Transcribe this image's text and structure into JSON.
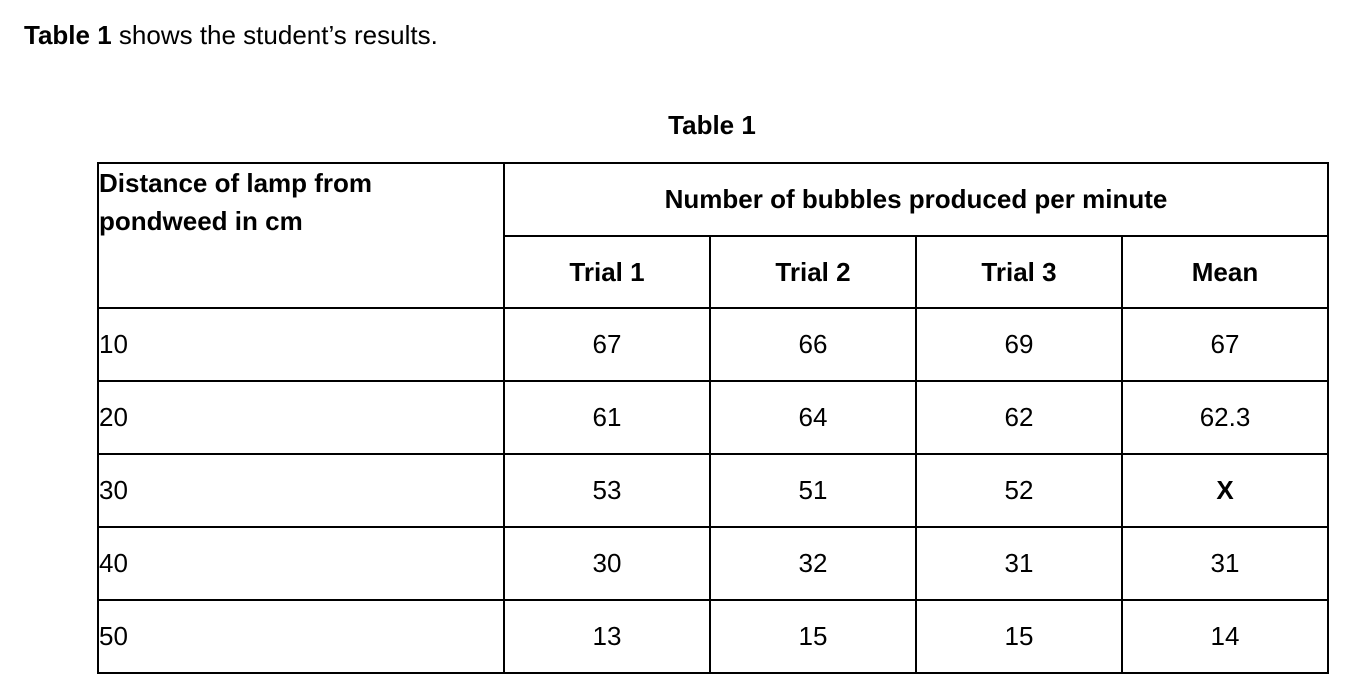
{
  "intro": {
    "bold": "Table 1",
    "rest": " shows the student’s results."
  },
  "table": {
    "caption": "Table 1",
    "distance_header": "Distance of lamp from pondweed in cm",
    "group_header": "Number of bubbles produced per minute",
    "sub_headers": [
      "Trial 1",
      "Trial 2",
      "Trial 3",
      "Mean"
    ],
    "rows": [
      {
        "distance": "10",
        "trial1": "67",
        "trial2": "66",
        "trial3": "69",
        "mean": "67"
      },
      {
        "distance": "20",
        "trial1": "61",
        "trial2": "64",
        "trial3": "62",
        "mean": "62.3"
      },
      {
        "distance": "30",
        "trial1": "53",
        "trial2": "51",
        "trial3": "52",
        "mean": "X"
      },
      {
        "distance": "40",
        "trial1": "30",
        "trial2": "32",
        "trial3": "31",
        "mean": "31"
      },
      {
        "distance": "50",
        "trial1": "13",
        "trial2": "15",
        "trial3": "15",
        "mean": "14"
      }
    ]
  }
}
